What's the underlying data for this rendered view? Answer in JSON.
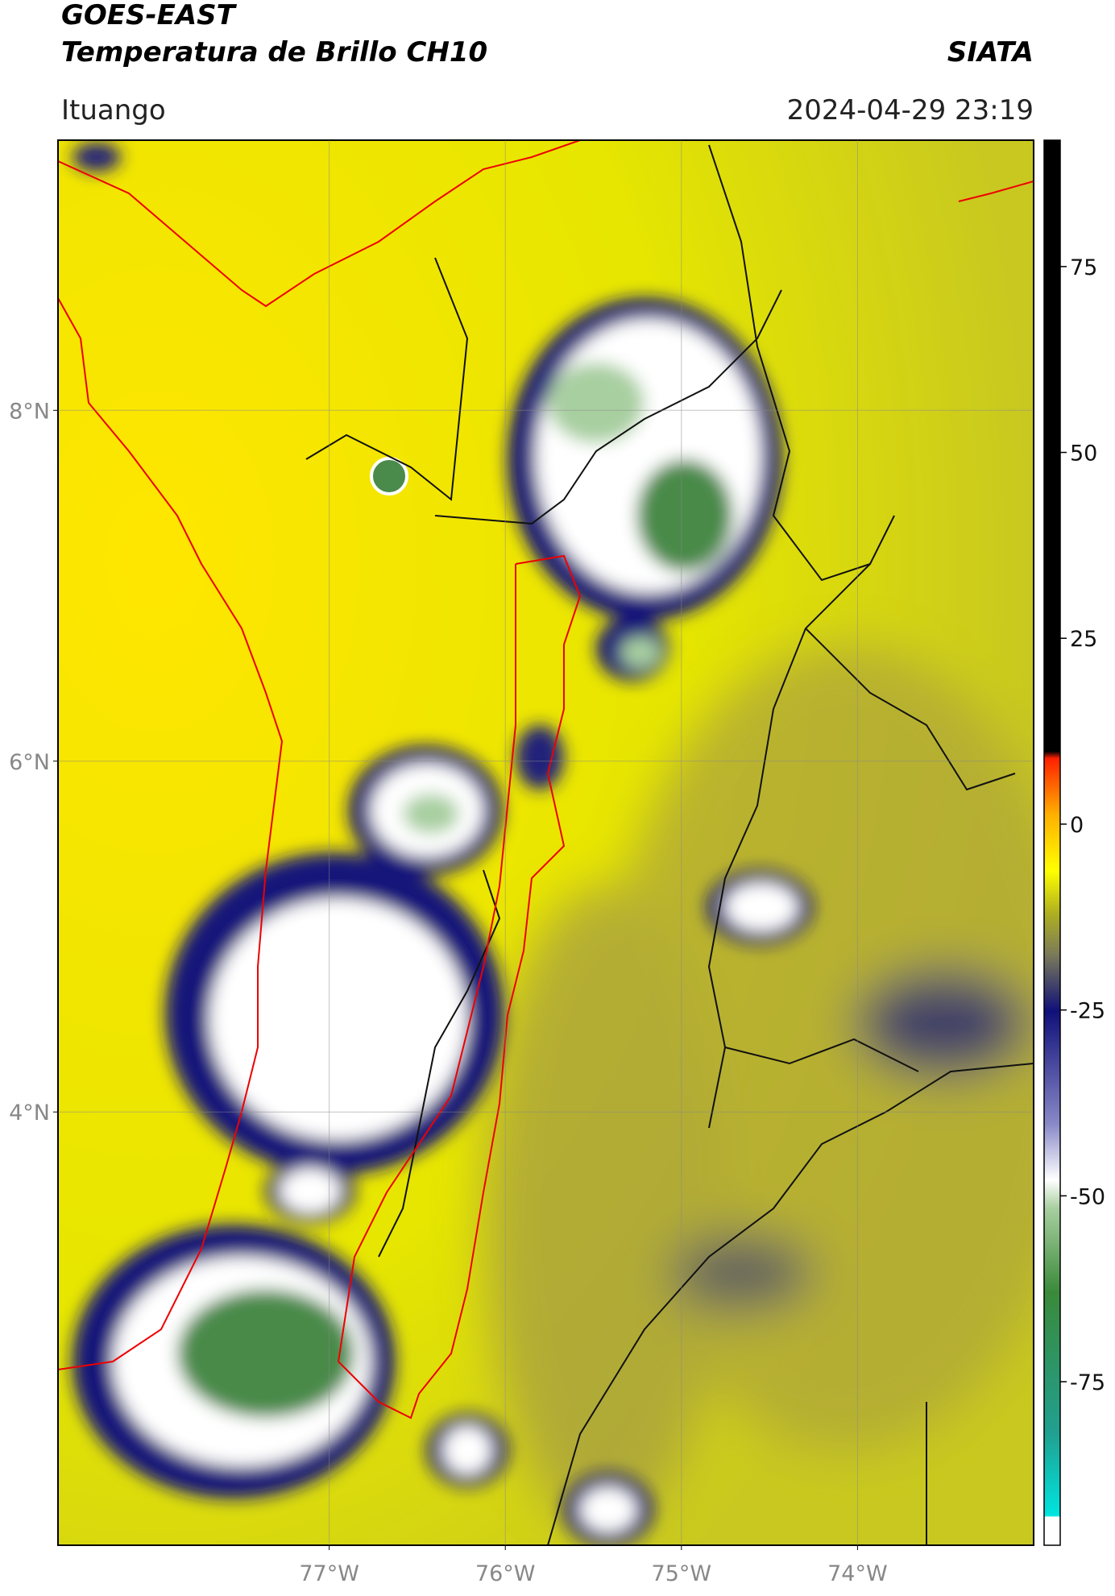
{
  "header": {
    "title": "GOES-EAST",
    "subtitle": "Temperatura de Brillo CH10",
    "brand": "SIATA",
    "location": "Ituango",
    "datetime": "2024-04-29 23:19"
  },
  "map": {
    "xlim": [
      -78.54,
      -73.0
    ],
    "ylim": [
      1.53,
      9.54
    ],
    "xticks": [
      {
        "value": -77,
        "label": "77°W"
      },
      {
        "value": -76,
        "label": "76°W"
      },
      {
        "value": -75,
        "label": "75°W"
      },
      {
        "value": -74,
        "label": "74°W"
      }
    ],
    "yticks": [
      {
        "value": 4,
        "label": "4°N"
      },
      {
        "value": 6,
        "label": "6°N"
      },
      {
        "value": 8,
        "label": "8°N"
      }
    ],
    "grid": true
  },
  "colorbar": {
    "clim": [
      -97,
      92
    ],
    "ticks": [
      75,
      50,
      25,
      0,
      -25,
      -50,
      -75
    ]
  }
}
